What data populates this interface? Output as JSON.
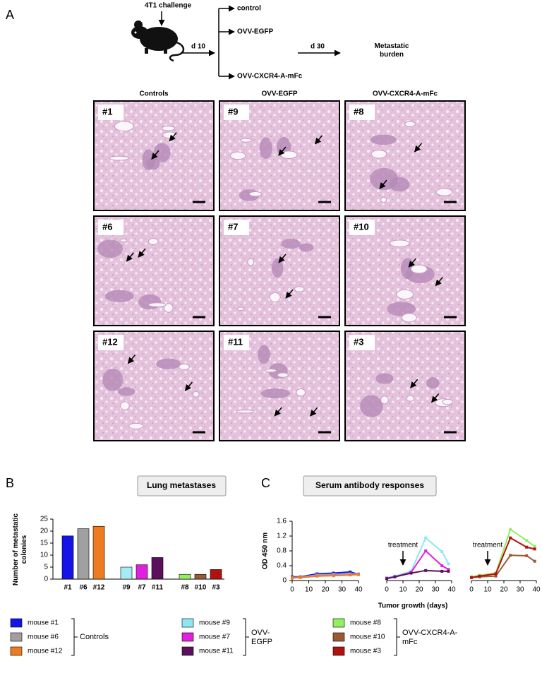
{
  "panel_labels": [
    "A",
    "B",
    "C"
  ],
  "schema": {
    "challenge": "4T1 challenge",
    "start": "d 10",
    "arms": [
      "control",
      "OVV-EGFP",
      "OVV-CXCR4-A-mFc"
    ],
    "end": "d 30",
    "outcome": "Metastatic burden"
  },
  "histology": {
    "columns": [
      "Controls",
      "OVV-EGFP",
      "OVV-CXCR4-A-mFc"
    ],
    "rows": [
      [
        "#1",
        "#9",
        "#8"
      ],
      [
        "#6",
        "#7",
        "#10"
      ],
      [
        "#12",
        "#11",
        "#3"
      ]
    ]
  },
  "chart_data": [
    {
      "type": "bar",
      "title": "Lung metastases",
      "ylabel": "Number of metastatic colonies",
      "categories": [
        "#1",
        "#6",
        "#12",
        "#9",
        "#7",
        "#11",
        "#8",
        "#10",
        "#3"
      ],
      "values": [
        18,
        21,
        22,
        5,
        6,
        9,
        2,
        2,
        4
      ],
      "colors": [
        "#1414e6",
        "#a0a0a0",
        "#ee7a22",
        "#a6ecf7",
        "#e020e0",
        "#5c0f5c",
        "#92ef5e",
        "#9a5a36",
        "#b31010"
      ],
      "ylim": [
        0,
        25
      ],
      "yticks": [
        0,
        5,
        10,
        15,
        20,
        25
      ]
    },
    {
      "type": "line",
      "title": "Serum antibody responses",
      "ylabel": "OD 450 nm",
      "xlabel": "Tumor growth (days)",
      "xlim": [
        0,
        40
      ],
      "xticks": [
        0,
        10,
        20,
        30,
        40
      ],
      "ylim": [
        0,
        1.6
      ],
      "yticks": [
        0,
        0.4,
        0.8,
        1.2,
        1.6
      ],
      "panels": [
        {
          "group": "Controls",
          "x": [
            0,
            5,
            15,
            25,
            35,
            40
          ],
          "series": [
            {
              "name": "mouse #1",
              "color": "#1414e6",
              "values": [
                0.1,
                0.1,
                0.18,
                0.2,
                0.23,
                0.17
              ]
            },
            {
              "name": "mouse #6",
              "color": "#a0a0a0",
              "values": [
                0.08,
                0.09,
                0.15,
                0.17,
                0.18,
                0.18
              ]
            },
            {
              "name": "mouse #12",
              "color": "#ee7a22",
              "values": [
                0.07,
                0.08,
                0.12,
                0.13,
                0.15,
                0.16
              ]
            }
          ]
        },
        {
          "group": "OVV-EGFP",
          "annotation": "treatment",
          "annotation_x": 10,
          "x": [
            0,
            5,
            15,
            24,
            34,
            38
          ],
          "series": [
            {
              "name": "mouse #9",
              "color": "#8ee6f5",
              "values": [
                0.08,
                0.12,
                0.25,
                1.15,
                0.78,
                0.45
              ]
            },
            {
              "name": "mouse #7",
              "color": "#e020e0",
              "values": [
                0.06,
                0.1,
                0.22,
                0.8,
                0.4,
                0.3
              ]
            },
            {
              "name": "mouse #11",
              "color": "#5c0f5c",
              "values": [
                0.05,
                0.1,
                0.2,
                0.27,
                0.25,
                0.25
              ]
            }
          ]
        },
        {
          "group": "OVV-CXCR4-A-mFc",
          "annotation": "treatment",
          "annotation_x": 10,
          "x": [
            0,
            5,
            15,
            24,
            34,
            39
          ],
          "series": [
            {
              "name": "mouse #8",
              "color": "#92ef5e",
              "values": [
                0.1,
                0.14,
                0.2,
                1.38,
                1.08,
                0.92
              ]
            },
            {
              "name": "mouse #10",
              "color": "#9a5a36",
              "values": [
                0.08,
                0.1,
                0.12,
                0.68,
                0.67,
                0.52
              ]
            },
            {
              "name": "mouse #3",
              "color": "#b31010",
              "values": [
                0.08,
                0.12,
                0.18,
                1.15,
                0.9,
                0.85
              ]
            }
          ]
        }
      ]
    }
  ]
}
